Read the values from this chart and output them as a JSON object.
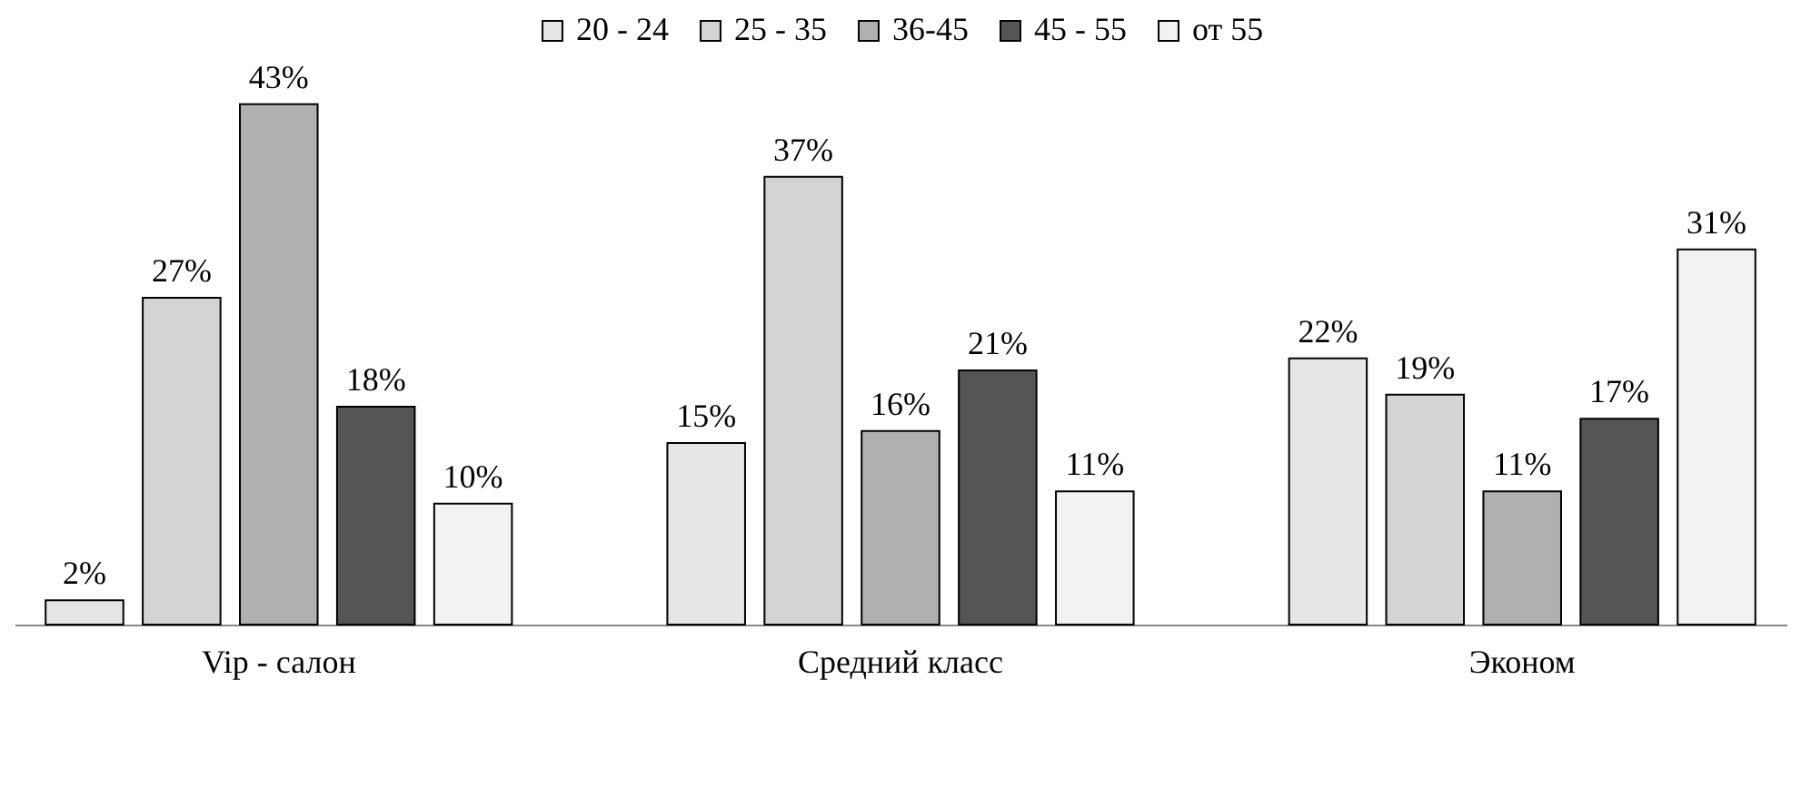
{
  "chart_data": {
    "type": "bar",
    "categories": [
      "Vip - салон",
      "Средний класс",
      "Эконом"
    ],
    "series": [
      {
        "name": "20 - 24",
        "color": "#e6e6e6",
        "values": [
          2,
          15,
          22
        ],
        "value_labels": [
          "2%",
          "15%",
          "22%"
        ]
      },
      {
        "name": "25 - 35",
        "color": "#d4d4d4",
        "values": [
          27,
          37,
          19
        ],
        "value_labels": [
          "27%",
          "37%",
          "19%"
        ]
      },
      {
        "name": "36-45",
        "color": "#b0b0b0",
        "values": [
          43,
          16,
          11
        ],
        "value_labels": [
          "43%",
          "16%",
          "11%"
        ]
      },
      {
        "name": "45 - 55",
        "color": "#555555",
        "values": [
          18,
          21,
          17
        ],
        "value_labels": [
          "18%",
          "21%",
          "17%"
        ]
      },
      {
        "name": "от 55",
        "color": "#f2f2f2",
        "values": [
          10,
          11,
          31
        ],
        "value_labels": [
          "10%",
          "11%",
          "31%"
        ]
      }
    ],
    "legend": "top"
  }
}
